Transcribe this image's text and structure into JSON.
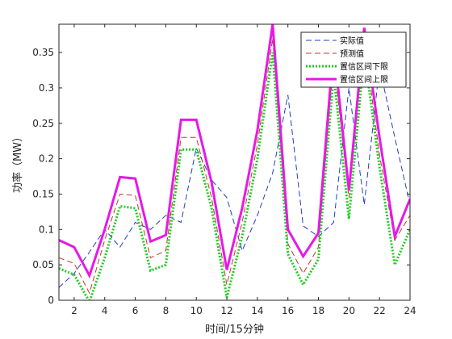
{
  "chart_data": {
    "type": "line",
    "title": "",
    "xlabel": "时间/15分钟",
    "ylabel": "功率（MW）",
    "xlim": [
      1,
      24
    ],
    "ylim": [
      0,
      0.39
    ],
    "xticks": [
      2,
      4,
      6,
      8,
      10,
      12,
      14,
      16,
      18,
      20,
      22,
      24
    ],
    "yticks": [
      0,
      0.05,
      0.1,
      0.15,
      0.2,
      0.25,
      0.3,
      0.35
    ],
    "ytick_labels": [
      "0",
      "0.05",
      "0.1",
      "0.15",
      "0.2",
      "0.25",
      "0.3",
      "0.35"
    ],
    "legend_position": "top-right",
    "grid": false,
    "x": [
      1,
      2,
      3,
      4,
      5,
      6,
      7,
      8,
      9,
      10,
      11,
      12,
      13,
      14,
      15,
      16,
      17,
      18,
      19,
      20,
      21,
      22,
      23,
      24
    ],
    "series": [
      {
        "name": "实际值",
        "color": "#1f3fbf",
        "style": "dashed",
        "values": [
          0.018,
          0.038,
          0.068,
          0.1,
          0.075,
          0.11,
          0.1,
          0.12,
          0.11,
          0.215,
          0.17,
          0.145,
          0.07,
          0.12,
          0.18,
          0.29,
          0.105,
          0.09,
          0.11,
          0.3,
          0.135,
          0.33,
          0.23,
          0.135
        ]
      },
      {
        "name": "预测值",
        "color": "#c0392b",
        "style": "dashed",
        "values": [
          0.06,
          0.052,
          0.01,
          0.085,
          0.15,
          0.148,
          0.06,
          0.07,
          0.23,
          0.23,
          0.145,
          0.022,
          0.11,
          0.22,
          0.37,
          0.08,
          0.038,
          0.075,
          0.34,
          0.145,
          0.37,
          0.205,
          0.085,
          0.12
        ]
      },
      {
        "name": "置信区间下限",
        "color": "#22cc22",
        "style": "dotted",
        "values": [
          0.045,
          0.036,
          -0.002,
          0.06,
          0.133,
          0.13,
          0.042,
          0.05,
          0.213,
          0.213,
          0.13,
          0.004,
          0.09,
          0.2,
          0.35,
          0.065,
          0.022,
          0.058,
          0.32,
          0.115,
          0.35,
          0.188,
          0.05,
          0.1
        ]
      },
      {
        "name": "置信区间上限",
        "color": "#e619e6",
        "style": "solid",
        "values": [
          0.085,
          0.075,
          0.035,
          0.1,
          0.174,
          0.172,
          0.083,
          0.092,
          0.255,
          0.255,
          0.167,
          0.043,
          0.13,
          0.24,
          0.39,
          0.1,
          0.062,
          0.095,
          0.36,
          0.155,
          0.385,
          0.23,
          0.09,
          0.143
        ]
      }
    ]
  }
}
